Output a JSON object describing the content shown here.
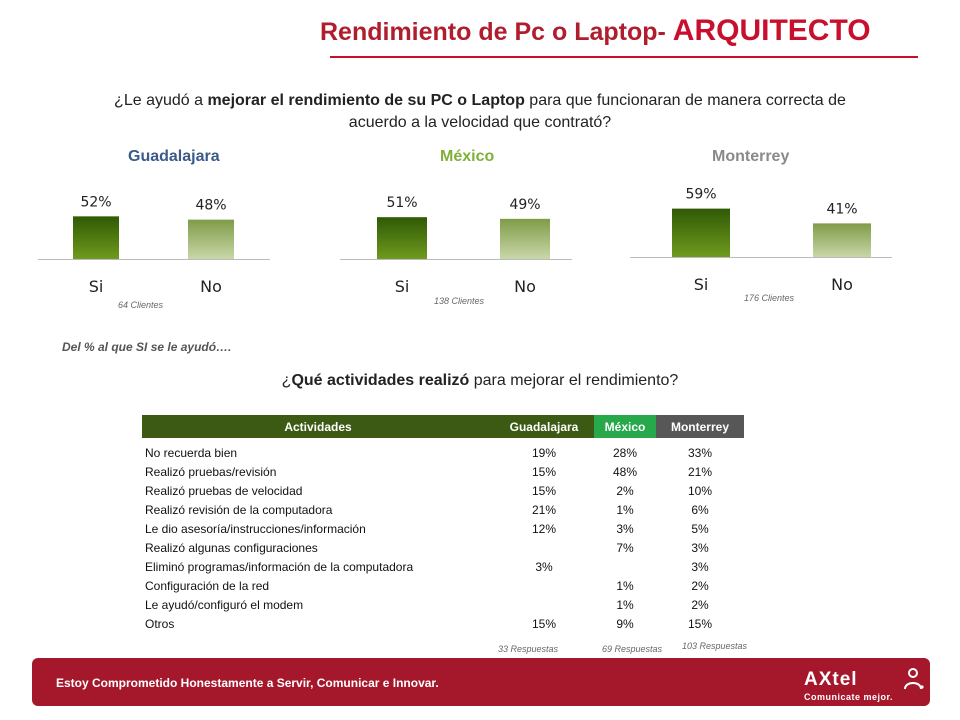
{
  "title": {
    "main": "Rendimiento de Pc o Laptop-",
    "accent": "ARQUITECTO"
  },
  "question": {
    "pre": "¿Le ayudó a ",
    "bold": "mejorar el rendimiento de su PC o Laptop",
    "post": " para que funcionaran de manera correcta de acuerdo a la velocidad que contrató?"
  },
  "colors": {
    "bar_si": "#4f7a0e",
    "bar_no": "#a7bd78",
    "brand": "#a5182c"
  },
  "chart_data": [
    {
      "type": "bar",
      "title": "Guadalajara",
      "categories": [
        "Si",
        "No"
      ],
      "values": [
        52,
        48
      ],
      "data_labels": [
        "52%",
        "48%"
      ],
      "note": "64 Clientes"
    },
    {
      "type": "bar",
      "title": "México",
      "categories": [
        "Si",
        "No"
      ],
      "values": [
        51,
        49
      ],
      "data_labels": [
        "51%",
        "49%"
      ],
      "note": "138 Clientes"
    },
    {
      "type": "bar",
      "title": "Monterrey",
      "categories": [
        "Si",
        "No"
      ],
      "values": [
        59,
        41
      ],
      "data_labels": [
        "59%",
        "41%"
      ],
      "note": "176 Clientes"
    }
  ],
  "subnote": "Del % al que SI se le ayudó….",
  "question2": {
    "pre": "¿",
    "bold": "Qué actividades realizó",
    "post": " para mejorar el rendimiento?"
  },
  "table": {
    "headers": [
      "Actividades",
      "Guadalajara",
      "México",
      "Monterrey"
    ],
    "rows": [
      [
        "No recuerda bien",
        "19%",
        "28%",
        "33%"
      ],
      [
        "Realizó pruebas/revisión",
        "15%",
        "48%",
        "21%"
      ],
      [
        "Realizó pruebas de velocidad",
        "15%",
        "2%",
        "10%"
      ],
      [
        "Realizó revisión de la computadora",
        "21%",
        "1%",
        "6%"
      ],
      [
        "Le dio asesoría/instrucciones/información",
        "12%",
        "3%",
        "5%"
      ],
      [
        "Realizó algunas configuraciones",
        "",
        "7%",
        "3%"
      ],
      [
        "Eliminó programas/información de la computadora",
        "3%",
        "",
        "3%"
      ],
      [
        "Configuración de la red",
        "",
        "1%",
        "2%"
      ],
      [
        "Le ayudó/configuró el modem",
        "",
        "1%",
        "2%"
      ],
      [
        "Otros",
        "15%",
        "9%",
        "15%"
      ]
    ],
    "responses": [
      "33 Respuestas",
      "69 Respuestas",
      "103 Respuestas"
    ]
  },
  "footer": {
    "text": "Estoy Comprometido Honestamente a Servir, Comunicar e Innovar.",
    "logo_ax": "AX",
    "logo_tel": "tel",
    "logo_tagline": "Comunicate mejor."
  }
}
